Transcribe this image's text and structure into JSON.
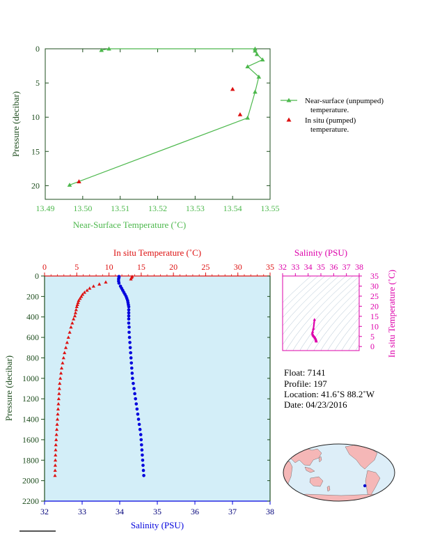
{
  "colors": {
    "green": "#4cb84c",
    "red": "#dd1111",
    "blue": "#0000dd",
    "magenta": "#dd00aa",
    "panel_bg": "#d3eef8",
    "dark_axis": "#1e4d1e",
    "navy": "#00007a",
    "land": "#f5b7b7",
    "ocean": "#ddeef8"
  },
  "chart_data": [
    {
      "id": "near-surface",
      "type": "line",
      "title": "",
      "xlabel": "Near-Surface Temperature (˚C)",
      "ylabel": "Pressure (decibar)",
      "xlim": [
        13.49,
        13.55
      ],
      "ylim": [
        0,
        22
      ],
      "y_inverted": true,
      "x_ticks": [
        "13.49",
        "13.50",
        "13.51",
        "13.52",
        "13.53",
        "13.54",
        "13.55"
      ],
      "y_ticks": [
        "0",
        "5",
        "10",
        "15",
        "20"
      ],
      "legend": {
        "placement": "right",
        "entries": [
          {
            "line1": "Near-surface (unpumped)",
            "line2": "temperature."
          },
          {
            "line1": "In situ (pumped)",
            "line2": "temperature."
          }
        ]
      },
      "series": [
        {
          "name": "Near-surface (unpumped) temperature.",
          "points": [
            [
              13.505,
              0.2
            ],
            [
              13.507,
              0.0
            ],
            [
              13.546,
              0.0
            ],
            [
              13.546,
              0.3
            ],
            [
              13.5465,
              0.8
            ],
            [
              13.548,
              1.6
            ],
            [
              13.544,
              2.6
            ],
            [
              13.547,
              4.1
            ],
            [
              13.546,
              6.3
            ],
            [
              13.544,
              10.1
            ],
            [
              13.4965,
              19.9
            ]
          ]
        },
        {
          "name": "In situ (pumped) temperature.",
          "points": [
            [
              13.54,
              5.9
            ],
            [
              13.542,
              9.6
            ],
            [
              13.499,
              19.4
            ]
          ]
        }
      ]
    },
    {
      "id": "profile",
      "type": "scatter",
      "title": "",
      "xlabel_top": "In situ Temperature (˚C)",
      "xlabel_bottom": "Salinity (PSU)",
      "ylabel": "Pressure (decibar)",
      "temp_lim": [
        0,
        35
      ],
      "sal_lim": [
        32,
        38
      ],
      "ylim": [
        0,
        2200
      ],
      "y_inverted": true,
      "temp_ticks": [
        "0",
        "5",
        "10",
        "15",
        "20",
        "25",
        "30",
        "35"
      ],
      "sal_ticks": [
        "32",
        "33",
        "34",
        "35",
        "36",
        "37",
        "38"
      ],
      "y_ticks": [
        "0",
        "200",
        "400",
        "600",
        "800",
        "1000",
        "1200",
        "1400",
        "1600",
        "1800",
        "2000",
        "2200"
      ],
      "temperature": [
        [
          13.6,
          5
        ],
        [
          13.5,
          15
        ],
        [
          13.4,
          30
        ],
        [
          9.5,
          60
        ],
        [
          8.5,
          80
        ],
        [
          7.6,
          100
        ],
        [
          7.0,
          120
        ],
        [
          6.6,
          140
        ],
        [
          6.2,
          160
        ],
        [
          5.9,
          180
        ],
        [
          5.7,
          200
        ],
        [
          5.5,
          220
        ],
        [
          5.3,
          240
        ],
        [
          5.2,
          260
        ],
        [
          5.1,
          280
        ],
        [
          5.0,
          300
        ],
        [
          4.9,
          330
        ],
        [
          4.8,
          360
        ],
        [
          4.7,
          390
        ],
        [
          4.5,
          420
        ],
        [
          4.3,
          460
        ],
        [
          4.1,
          500
        ],
        [
          3.9,
          550
        ],
        [
          3.7,
          600
        ],
        [
          3.5,
          650
        ],
        [
          3.3,
          700
        ],
        [
          3.1,
          750
        ],
        [
          2.95,
          800
        ],
        [
          2.8,
          850
        ],
        [
          2.65,
          900
        ],
        [
          2.55,
          950
        ],
        [
          2.45,
          1000
        ],
        [
          2.35,
          1050
        ],
        [
          2.3,
          1100
        ],
        [
          2.25,
          1150
        ],
        [
          2.2,
          1200
        ],
        [
          2.15,
          1250
        ],
        [
          2.1,
          1300
        ],
        [
          2.05,
          1350
        ],
        [
          2.0,
          1400
        ],
        [
          1.95,
          1450
        ],
        [
          1.9,
          1500
        ],
        [
          1.85,
          1550
        ],
        [
          1.8,
          1600
        ],
        [
          1.75,
          1650
        ],
        [
          1.72,
          1700
        ],
        [
          1.7,
          1750
        ],
        [
          1.68,
          1800
        ],
        [
          1.66,
          1850
        ],
        [
          1.64,
          1900
        ],
        [
          1.62,
          1950
        ]
      ],
      "salinity": [
        [
          33.98,
          5
        ],
        [
          33.98,
          15
        ],
        [
          33.97,
          30
        ],
        [
          33.97,
          50
        ],
        [
          33.98,
          70
        ],
        [
          34.02,
          100
        ],
        [
          34.05,
          120
        ],
        [
          34.08,
          140
        ],
        [
          34.11,
          160
        ],
        [
          34.14,
          180
        ],
        [
          34.17,
          200
        ],
        [
          34.19,
          220
        ],
        [
          34.21,
          240
        ],
        [
          34.22,
          260
        ],
        [
          34.23,
          280
        ],
        [
          34.24,
          300
        ],
        [
          34.24,
          330
        ],
        [
          34.24,
          360
        ],
        [
          34.24,
          390
        ],
        [
          34.24,
          420
        ],
        [
          34.24,
          460
        ],
        [
          34.25,
          500
        ],
        [
          34.25,
          550
        ],
        [
          34.26,
          600
        ],
        [
          34.27,
          650
        ],
        [
          34.28,
          700
        ],
        [
          34.29,
          750
        ],
        [
          34.3,
          800
        ],
        [
          34.31,
          850
        ],
        [
          34.32,
          900
        ],
        [
          34.33,
          950
        ],
        [
          34.34,
          1000
        ],
        [
          34.36,
          1050
        ],
        [
          34.38,
          1100
        ],
        [
          34.4,
          1150
        ],
        [
          34.42,
          1200
        ],
        [
          34.44,
          1250
        ],
        [
          34.46,
          1300
        ],
        [
          34.48,
          1350
        ],
        [
          34.5,
          1400
        ],
        [
          34.52,
          1450
        ],
        [
          34.54,
          1500
        ],
        [
          34.56,
          1550
        ],
        [
          34.57,
          1600
        ],
        [
          34.58,
          1650
        ],
        [
          34.59,
          1700
        ],
        [
          34.6,
          1750
        ],
        [
          34.61,
          1800
        ],
        [
          34.62,
          1850
        ],
        [
          34.63,
          1900
        ],
        [
          34.64,
          1950
        ]
      ]
    },
    {
      "id": "ts-diagram",
      "type": "scatter",
      "xlabel": "Salinity (PSU)",
      "ylabel": "In situ Temperature (˚C)",
      "xlim": [
        32,
        38
      ],
      "ylim": [
        -2,
        35
      ],
      "x_ticks": [
        "32",
        "33",
        "34",
        "35",
        "36",
        "37",
        "38"
      ],
      "y_ticks": [
        "0",
        "5",
        "10",
        "15",
        "20",
        "25",
        "30",
        "35"
      ],
      "points": [
        [
          34.5,
          13.4
        ],
        [
          34.42,
          9.0
        ],
        [
          34.35,
          7.3
        ],
        [
          34.33,
          6.5
        ],
        [
          34.36,
          5.9
        ],
        [
          34.4,
          5.5
        ],
        [
          34.44,
          5.2
        ],
        [
          34.48,
          4.9
        ],
        [
          34.52,
          4.6
        ],
        [
          34.55,
          4.3
        ],
        [
          34.58,
          4.0
        ],
        [
          34.6,
          3.6
        ],
        [
          34.62,
          3.2
        ],
        [
          34.63,
          2.9
        ],
        [
          34.64,
          2.6
        ]
      ]
    }
  ],
  "info": {
    "float": "Float:  7141",
    "profile": "Profile:  197",
    "location": "Location:  41.6˚S  88.2˚W",
    "date": "Date:  04/23/2016"
  },
  "map": {
    "float_position": {
      "lon": -88.2,
      "lat": -41.6
    },
    "marker_color": "#0000cc"
  }
}
